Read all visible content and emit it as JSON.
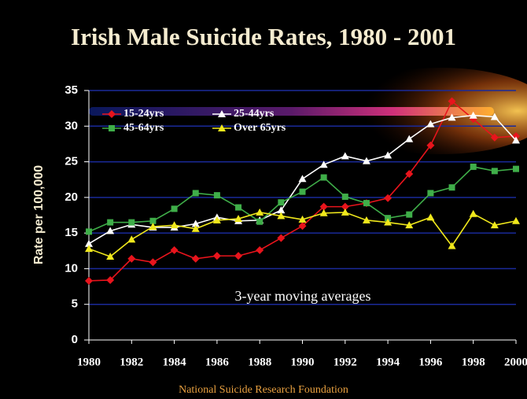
{
  "chart_data": {
    "type": "line",
    "title": "Irish Male Suicide Rates, 1980 - 2001",
    "y_label": "Rate per 100,000",
    "annotation": "3-year moving averages",
    "footer": "National Suicide Research Foundation",
    "x": [
      1980,
      1981,
      1982,
      1983,
      1984,
      1985,
      1986,
      1987,
      1988,
      1989,
      1990,
      1991,
      1992,
      1993,
      1994,
      1995,
      1996,
      1997,
      1998,
      1999,
      2000
    ],
    "series": [
      {
        "name": "15-24yrs",
        "color": "#e8141c",
        "marker": "diamond",
        "values": [
          8.3,
          8.4,
          11.4,
          10.9,
          12.6,
          11.4,
          11.8,
          11.8,
          12.6,
          14.3,
          16.0,
          18.7,
          18.7,
          19.2,
          19.9,
          23.3,
          27.3,
          33.5,
          31.0,
          28.4,
          28.6
        ]
      },
      {
        "name": "25-44yrs",
        "color": "#ffffff",
        "marker": "triangle",
        "values": [
          13.5,
          15.3,
          16.2,
          15.8,
          15.8,
          16.3,
          17.2,
          16.7,
          16.8,
          18.2,
          22.6,
          24.6,
          25.8,
          25.1,
          25.9,
          28.2,
          30.3,
          31.2,
          31.5,
          31.3,
          28.0
        ]
      },
      {
        "name": "45-64yrs",
        "color": "#3fae49",
        "marker": "square",
        "values": [
          15.2,
          16.5,
          16.5,
          16.7,
          18.4,
          20.6,
          20.3,
          18.6,
          16.6,
          19.3,
          20.8,
          22.8,
          20.1,
          19.2,
          17.1,
          17.6,
          20.6,
          21.4,
          24.3,
          23.7,
          24.0
        ]
      },
      {
        "name": "Over 65yrs",
        "color": "#f0e81c",
        "marker": "triangle",
        "values": [
          12.8,
          11.7,
          14.1,
          15.9,
          16.1,
          15.6,
          16.8,
          17.0,
          17.9,
          17.4,
          16.9,
          17.8,
          17.9,
          16.8,
          16.5,
          16.1,
          17.2,
          13.2,
          17.7,
          16.1,
          16.7
        ]
      }
    ],
    "xlim": [
      1980,
      2000
    ],
    "xticks": [
      1980,
      1982,
      1984,
      1986,
      1988,
      1990,
      1992,
      1994,
      1996,
      1998,
      2000
    ],
    "ylim": [
      0,
      35
    ],
    "yticks": [
      0,
      5,
      10,
      15,
      20,
      25,
      30,
      35
    ],
    "grid": true
  }
}
